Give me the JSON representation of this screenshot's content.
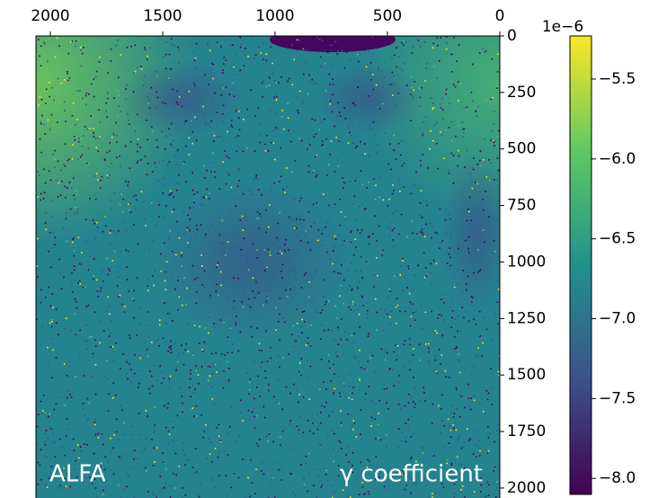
{
  "chart_data": {
    "type": "image",
    "annotations": [
      "ALFA",
      "γ coefficient"
    ],
    "xlim": [
      2064,
      0
    ],
    "xticks": [
      2000,
      1500,
      1000,
      500,
      0
    ],
    "ylim": [
      0,
      2064
    ],
    "yticks": [
      0,
      250,
      500,
      750,
      1000,
      1250,
      1500,
      1750,
      2000
    ],
    "colorbar": {
      "offset_label": "1e−6",
      "lim": [
        -8.1,
        -5.23
      ],
      "ticks": [
        {
          "value": -5.5,
          "label": "−5.5"
        },
        {
          "value": -6.0,
          "label": "−6.0"
        },
        {
          "value": -6.5,
          "label": "−6.5"
        },
        {
          "value": -7.0,
          "label": "−7.0"
        },
        {
          "value": -7.5,
          "label": "−7.5"
        },
        {
          "value": -8.0,
          "label": "−8.0"
        }
      ],
      "colormap": [
        "#440154",
        "#3b528b",
        "#21918c",
        "#5ec962",
        "#fde725"
      ]
    }
  }
}
